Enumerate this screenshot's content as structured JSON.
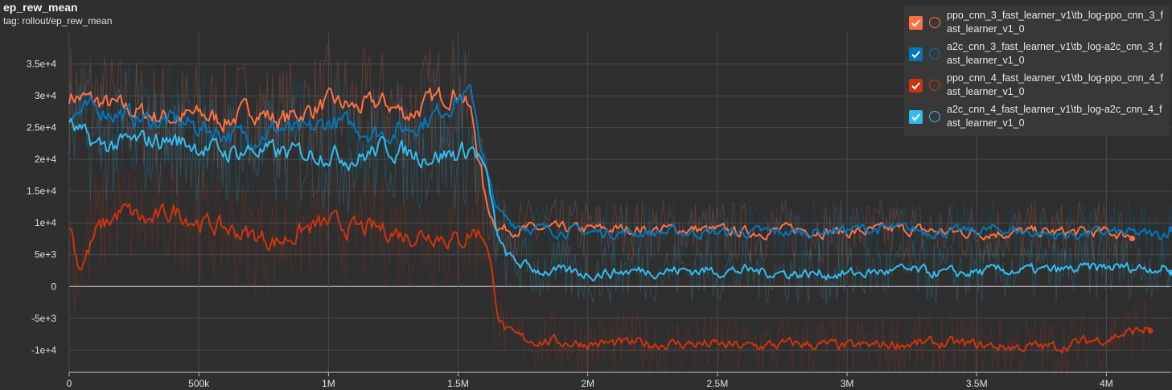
{
  "header": {
    "title": "ep_rew_mean",
    "tag": "tag: rollout/ep_rew_mean"
  },
  "legend": [
    {
      "name": "ppo_cnn_3_fast_learner_v1\\tb_log-ppo_cnn_3_fast_learner_v1_0",
      "color": "#ff7043",
      "checked": true
    },
    {
      "name": "a2c_cnn_3_fast_learner_v1\\tb_log-a2c_cnn_3_fast_learner_v1_0",
      "color": "#0077bb",
      "checked": true
    },
    {
      "name": "ppo_cnn_4_fast_learner_v1\\tb_log-ppo_cnn_4_fast_learner_v1_0",
      "color": "#cc3311",
      "checked": true
    },
    {
      "name": "a2c_cnn_4_fast_learner_v1\\tb_log-a2c_cnn_4_fast_learner_v1_0",
      "color": "#33bbee",
      "checked": true
    }
  ],
  "chart_data": {
    "type": "line",
    "title": "ep_rew_mean",
    "xlim": [
      0,
      4250000
    ],
    "ylim": [
      -13500,
      40000
    ],
    "grid": true,
    "legend_position": "top-right",
    "x_ticks": [
      {
        "value": 0,
        "label": "0"
      },
      {
        "value": 500000,
        "label": "500k"
      },
      {
        "value": 1000000,
        "label": "1M"
      },
      {
        "value": 1500000,
        "label": "1.5M"
      },
      {
        "value": 2000000,
        "label": "2M"
      },
      {
        "value": 2500000,
        "label": "2.5M"
      },
      {
        "value": 3000000,
        "label": "3M"
      },
      {
        "value": 3500000,
        "label": "3.5M"
      },
      {
        "value": 4000000,
        "label": "4M"
      }
    ],
    "y_ticks": [
      {
        "value": -10000,
        "label": "-1e+4"
      },
      {
        "value": -5000,
        "label": "-5e+3"
      },
      {
        "value": 0,
        "label": "0"
      },
      {
        "value": 5000,
        "label": "5e+3"
      },
      {
        "value": 10000,
        "label": "1e+4"
      },
      {
        "value": 15000,
        "label": "1.5e+4"
      },
      {
        "value": 20000,
        "label": "2e+4"
      },
      {
        "value": 25000,
        "label": "2.5e+4"
      },
      {
        "value": 30000,
        "label": "3e+4"
      },
      {
        "value": 35000,
        "label": "3.5e+4"
      }
    ],
    "series": [
      {
        "name": "ppo_cnn_3_fast_learner_v1\\tb_log-ppo_cnn_3_fast_learner_v1_0",
        "color": "#ff7043",
        "x": [
          0,
          100000,
          200000,
          300000,
          400000,
          500000,
          600000,
          700000,
          800000,
          900000,
          1000000,
          1100000,
          1200000,
          1300000,
          1400000,
          1500000,
          1550000,
          1600000,
          1650000,
          1700000,
          1800000,
          2000000,
          2200000,
          2400000,
          2600000,
          2800000,
          3000000,
          3200000,
          3400000,
          3600000,
          3800000,
          4000000,
          4100000
        ],
        "y": [
          30000,
          29000,
          28000,
          27000,
          26500,
          27000,
          26000,
          28000,
          26000,
          27500,
          29000,
          28000,
          29000,
          27000,
          29500,
          31000,
          26000,
          12000,
          9000,
          9000,
          9000,
          9000,
          9000,
          9000,
          8500,
          9000,
          8500,
          9000,
          8500,
          8500,
          8500,
          8500,
          8000
        ]
      },
      {
        "name": "a2c_cnn_3_fast_learner_v1\\tb_log-a2c_cnn_3_fast_learner_v1_0",
        "color": "#0077bb",
        "x": [
          0,
          100000,
          200000,
          300000,
          400000,
          500000,
          600000,
          700000,
          800000,
          900000,
          1000000,
          1100000,
          1200000,
          1300000,
          1400000,
          1500000,
          1550000,
          1600000,
          1650000,
          1700000,
          1800000,
          2000000,
          2200000,
          2400000,
          2600000,
          2800000,
          3000000,
          3200000,
          3400000,
          3600000,
          3800000,
          4000000,
          4200000,
          4250000
        ],
        "y": [
          27000,
          28000,
          27000,
          26000,
          26000,
          25000,
          24000,
          23500,
          25000,
          24000,
          26000,
          25000,
          24000,
          25000,
          27000,
          30000,
          30000,
          17000,
          11000,
          10000,
          9000,
          8500,
          8500,
          8500,
          8500,
          8500,
          9000,
          9000,
          8500,
          9000,
          8000,
          8500,
          8000,
          9300
        ]
      },
      {
        "name": "ppo_cnn_4_fast_learner_v1\\tb_log-ppo_cnn_4_fast_learner_v1_0",
        "color": "#cc3311",
        "x": [
          0,
          30000,
          100000,
          200000,
          300000,
          400000,
          500000,
          600000,
          700000,
          800000,
          900000,
          1000000,
          1100000,
          1200000,
          1300000,
          1400000,
          1500000,
          1550000,
          1600000,
          1650000,
          1700000,
          1800000,
          2000000,
          2200000,
          2400000,
          2600000,
          2800000,
          3000000,
          3200000,
          3400000,
          3600000,
          3800000,
          4000000,
          4100000,
          4170000
        ],
        "y": [
          10000,
          2000,
          9000,
          12000,
          10000,
          12000,
          10000,
          9000,
          8000,
          7000,
          9000,
          10000,
          9000,
          9000,
          8000,
          8500,
          7000,
          9000,
          8000,
          -6000,
          -8000,
          -8500,
          -9000,
          -9000,
          -9000,
          -9500,
          -9000,
          -9500,
          -9000,
          -9000,
          -9500,
          -9500,
          -8000,
          -7000,
          -6500
        ]
      },
      {
        "name": "a2c_cnn_4_fast_learner_v1\\tb_log-a2c_cnn_4_fast_learner_v1_0",
        "color": "#33bbee",
        "x": [
          0,
          100000,
          200000,
          300000,
          400000,
          500000,
          600000,
          700000,
          800000,
          900000,
          1000000,
          1100000,
          1200000,
          1300000,
          1400000,
          1500000,
          1550000,
          1600000,
          1650000,
          1700000,
          1800000,
          2000000,
          2200000,
          2400000,
          2600000,
          2800000,
          3000000,
          3200000,
          3400000,
          3600000,
          3800000,
          4000000,
          4200000,
          4250000
        ],
        "y": [
          25000,
          22000,
          22500,
          23000,
          23000,
          22000,
          21000,
          21500,
          21000,
          21000,
          21000,
          20000,
          22000,
          21000,
          20500,
          21000,
          22000,
          18000,
          6000,
          4000,
          2500,
          2000,
          2500,
          2500,
          2500,
          2000,
          2000,
          2500,
          2000,
          2500,
          2500,
          3000,
          3000,
          2500
        ]
      }
    ]
  }
}
